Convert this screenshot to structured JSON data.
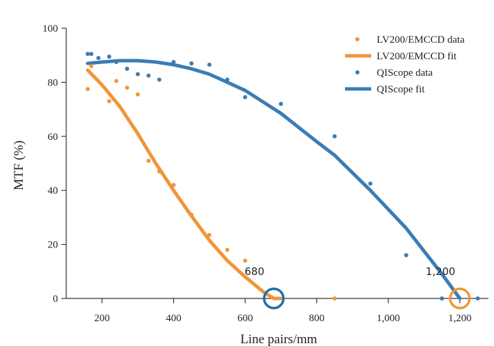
{
  "chart_data": {
    "type": "scatter",
    "xlabel": "Line pairs/mm",
    "ylabel": "MTF (%)",
    "xlim": [
      100,
      1280
    ],
    "ylim": [
      0,
      100
    ],
    "xticks": [
      200,
      400,
      600,
      800,
      1000,
      1200
    ],
    "xtick_labels": [
      "200",
      "400",
      "600",
      "800",
      "1,000",
      "1,200"
    ],
    "yticks": [
      0,
      20,
      40,
      60,
      80,
      100
    ],
    "ytick_labels": [
      "0",
      "20",
      "40",
      "60",
      "80",
      "100"
    ],
    "grid": false,
    "legend_position": "top-right",
    "colors": {
      "lv200": "#f0953a",
      "qiscope": "#3a7db5"
    },
    "series": [
      {
        "name": "LV200/EMCCD data",
        "kind": "scatter",
        "color": "#f0953a",
        "x": [
          160,
          170,
          220,
          240,
          270,
          300,
          330,
          360,
          400,
          450,
          500,
          550,
          600,
          850
        ],
        "y": [
          77.5,
          86,
          73,
          80.5,
          78,
          75.5,
          51,
          47,
          42,
          31,
          23.5,
          18,
          14,
          0
        ]
      },
      {
        "name": "LV200/EMCCD fit",
        "kind": "line",
        "color": "#f0953a",
        "x": [
          160,
          200,
          250,
          300,
          350,
          400,
          450,
          500,
          550,
          600,
          650,
          680,
          700
        ],
        "y": [
          84.5,
          79,
          71,
          61,
          50,
          40,
          30.5,
          21.5,
          14,
          8,
          2.5,
          0,
          0
        ]
      },
      {
        "name": "QIScope data",
        "kind": "scatter",
        "color": "#3a7db5",
        "x": [
          160,
          170,
          190,
          220,
          240,
          270,
          300,
          330,
          360,
          400,
          450,
          500,
          550,
          600,
          700,
          850,
          950,
          1050,
          1150,
          1250
        ],
        "y": [
          90.5,
          90.5,
          89,
          89.5,
          87.5,
          85,
          83,
          82.5,
          81,
          87.5,
          87,
          86.5,
          81,
          74.5,
          72,
          60,
          42.5,
          16,
          0,
          0
        ]
      },
      {
        "name": "QIScope fit",
        "kind": "line",
        "color": "#3a7db5",
        "x": [
          160,
          200,
          250,
          300,
          350,
          400,
          450,
          500,
          550,
          600,
          700,
          800,
          850,
          950,
          1050,
          1150,
          1200
        ],
        "y": [
          87,
          87.5,
          88,
          88,
          87.5,
          86.5,
          85,
          83,
          80,
          77,
          68.5,
          58,
          53,
          40,
          26,
          9,
          0
        ]
      }
    ],
    "annotations": [
      {
        "text": "680",
        "x": 680,
        "y": 0,
        "circle_color": "#1f6ea8"
      },
      {
        "text": "1,200",
        "x": 1200,
        "y": 0,
        "circle_color": "#f0953a"
      }
    ]
  }
}
